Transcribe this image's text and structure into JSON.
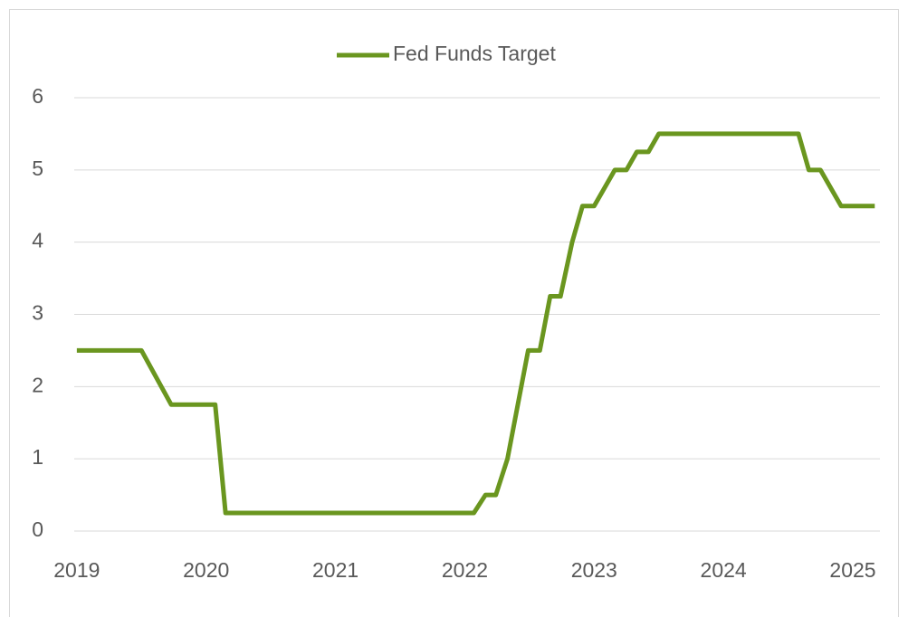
{
  "chart_data": {
    "type": "line",
    "x": [
      2019.0,
      2019.5,
      2019.73,
      2020.07,
      2020.15,
      2022.07,
      2022.16,
      2022.24,
      2022.33,
      2022.49,
      2022.58,
      2022.66,
      2022.74,
      2022.83,
      2022.91,
      2023.0,
      2023.16,
      2023.25,
      2023.33,
      2023.42,
      2023.5,
      2024.58,
      2024.66,
      2024.75,
      2024.91,
      2025.17
    ],
    "series": [
      {
        "name": "Fed Funds Target",
        "color": "#6a961f",
        "values": [
          2.5,
          2.5,
          1.75,
          1.75,
          0.25,
          0.25,
          0.5,
          0.5,
          1.0,
          2.5,
          2.5,
          3.25,
          3.25,
          4.0,
          4.5,
          4.5,
          5.0,
          5.0,
          5.25,
          5.25,
          5.5,
          5.5,
          5.0,
          5.0,
          4.5,
          4.5
        ]
      }
    ],
    "xlim": [
      2018.98,
      2025.21
    ],
    "xticks": [
      2019,
      2020,
      2021,
      2022,
      2023,
      2024,
      2025
    ],
    "ylim": [
      0,
      6
    ],
    "yticks": [
      0,
      1,
      2,
      3,
      4,
      5,
      6
    ],
    "grid": true,
    "legend": "top"
  }
}
